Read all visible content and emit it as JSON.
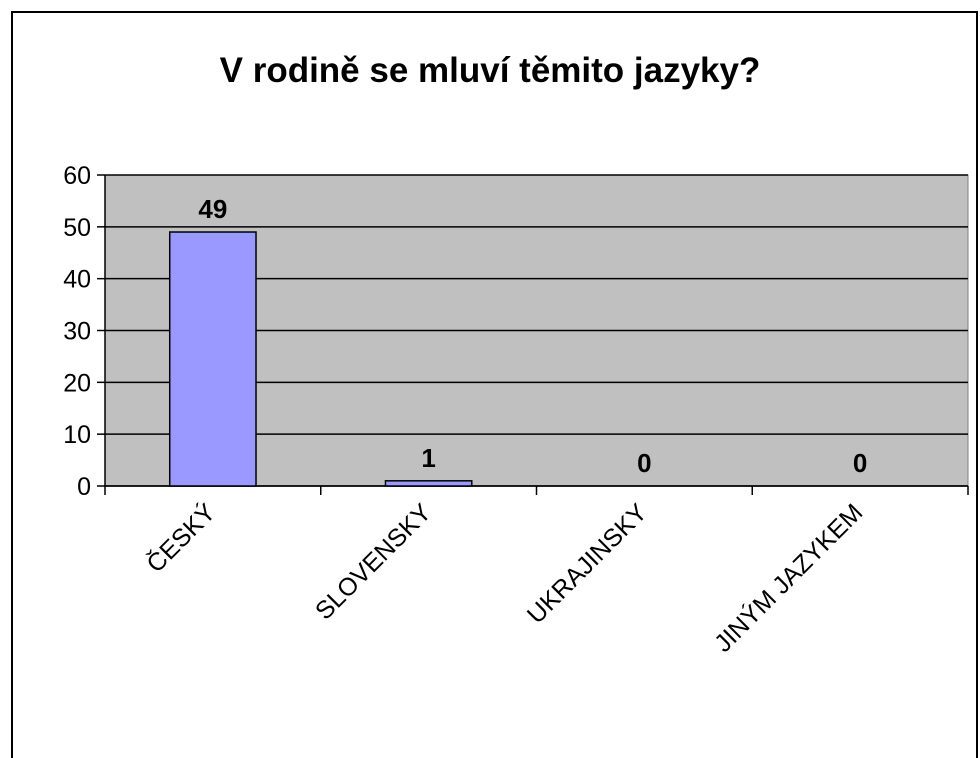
{
  "chart_data": {
    "type": "bar",
    "title": "V rodině se mluví těmito jazyky?",
    "categories": [
      "ČESKÝ",
      "SLOVENSKY",
      "UKRAJINSKY",
      "JINÝM JAZYKEM"
    ],
    "values": [
      49,
      1,
      0,
      0
    ],
    "color": "#9999ff",
    "ylim": [
      0,
      60
    ],
    "yticks": [
      0,
      10,
      20,
      30,
      40,
      50,
      60
    ],
    "grid": true
  }
}
